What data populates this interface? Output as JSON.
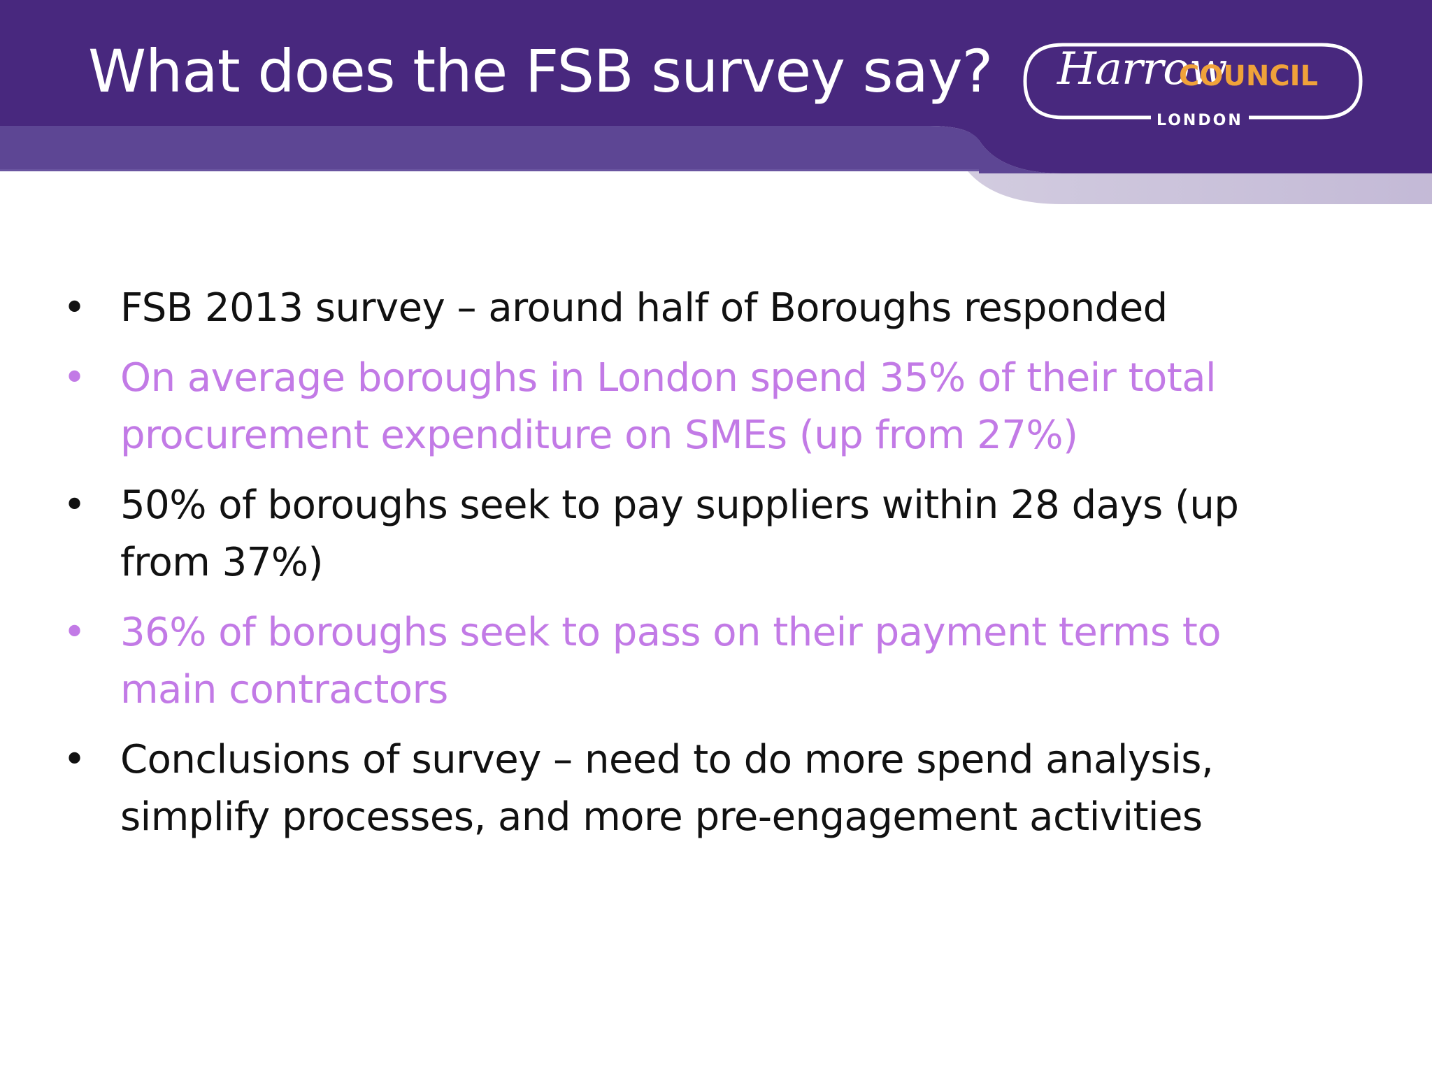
{
  "slide": {
    "title": "What does the FSB survey say?",
    "colors": {
      "header_purple": "#48287e",
      "header_band_light": "#5d4694",
      "accent_violet": "#c27ae6",
      "body_text": "#111111"
    }
  },
  "logo": {
    "harrow": "Harrow",
    "council": "COUNCIL",
    "london": "LONDON"
  },
  "bullets": [
    {
      "text": "FSB 2013 survey – around half of Boroughs responded",
      "color": "black"
    },
    {
      "text": "On average boroughs in London spend 35% of their total procurement expenditure on SMEs  (up from 27%)",
      "color": "violet"
    },
    {
      "text": "50% of boroughs seek to pay suppliers within 28 days (up from 37%)",
      "color": "black"
    },
    {
      "text": "36% of boroughs seek to pass on their payment terms to main contractors",
      "color": "violet"
    },
    {
      "text": "Conclusions of survey – need to do more spend analysis, simplify processes, and more pre-engagement activities",
      "color": "black"
    }
  ],
  "bullet_symbol": "•"
}
